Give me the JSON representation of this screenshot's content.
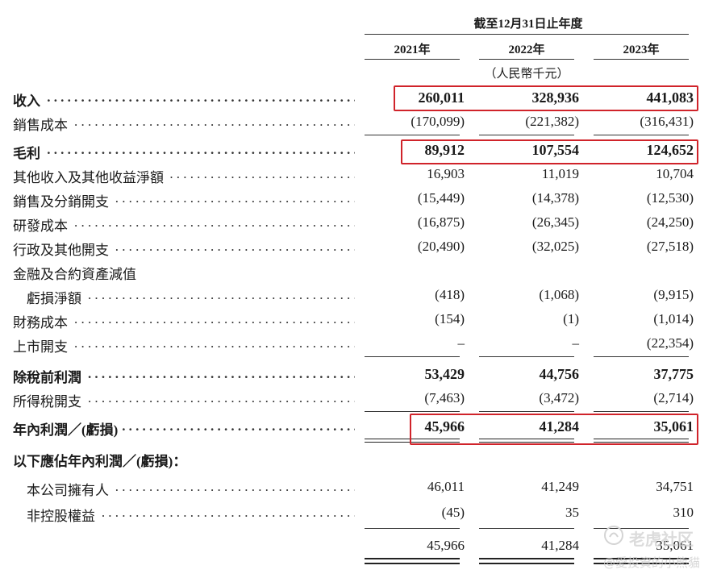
{
  "header": {
    "period": "截至12月31日止年度",
    "years": [
      "2021年",
      "2022年",
      "2023年"
    ],
    "unit": "（人民幣千元）"
  },
  "rows": [
    {
      "label": "收入",
      "values": [
        "260,011",
        "328,936",
        "441,083"
      ]
    },
    {
      "label": "銷售成本",
      "values": [
        "(170,099)",
        "(221,382)",
        "(316,431)"
      ]
    },
    {
      "label": "毛利",
      "values": [
        "89,912",
        "107,554",
        "124,652"
      ]
    },
    {
      "label": "其他收入及其他收益淨額",
      "values": [
        "16,903",
        "11,019",
        "10,704"
      ]
    },
    {
      "label": "銷售及分銷開支",
      "values": [
        "(15,449)",
        "(14,378)",
        "(12,530)"
      ]
    },
    {
      "label": "研發成本",
      "values": [
        "(16,875)",
        "(26,345)",
        "(24,250)"
      ]
    },
    {
      "label": "行政及其他開支",
      "values": [
        "(20,490)",
        "(32,025)",
        "(27,518)"
      ]
    },
    {
      "label": "金融及合約資產減值",
      "values": []
    },
    {
      "label": "虧損淨額",
      "values": [
        "(418)",
        "(1,068)",
        "(9,915)"
      ]
    },
    {
      "label": "財務成本",
      "values": [
        "(154)",
        "(1)",
        "(1,014)"
      ]
    },
    {
      "label": "上市開支",
      "values": [
        "–",
        "–",
        "(22,354)"
      ]
    },
    {
      "label": "除稅前利潤",
      "values": [
        "53,429",
        "44,756",
        "37,775"
      ]
    },
    {
      "label": "所得稅開支",
      "values": [
        "(7,463)",
        "(3,472)",
        "(2,714)"
      ]
    },
    {
      "label": "年內利潤／(虧損)",
      "values": [
        "45,966",
        "41,284",
        "35,061"
      ]
    },
    {
      "label": "以下應佔年內利潤／(虧損)：",
      "values": []
    },
    {
      "label": "本公司擁有人",
      "values": [
        "46,011",
        "41,249",
        "34,751"
      ]
    },
    {
      "label": "非控股權益",
      "values": [
        "(45)",
        "35",
        "310"
      ]
    },
    {
      "label": "",
      "values": [
        "45,966",
        "41,284",
        "35,061"
      ]
    }
  ],
  "watermark": {
    "line1": "老虎社区",
    "line2": "@愛投資的小熊貓"
  },
  "colors": {
    "highlight_box": "#d0232a",
    "text": "#1a1a1a"
  }
}
